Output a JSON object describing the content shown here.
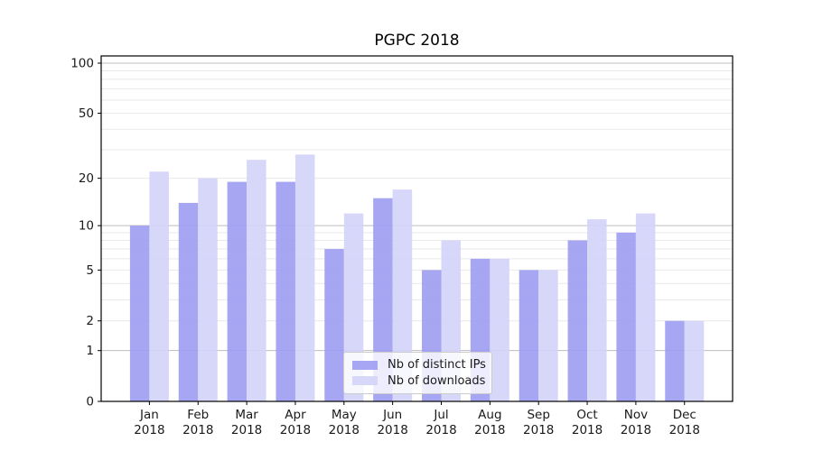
{
  "chart_data": {
    "type": "bar",
    "title": "PGPC 2018",
    "categories": [
      "Jan 2018",
      "Feb 2018",
      "Mar 2018",
      "Apr 2018",
      "May 2018",
      "Jun 2018",
      "Jul 2018",
      "Aug 2018",
      "Sep 2018",
      "Oct 2018",
      "Nov 2018",
      "Dec 2018"
    ],
    "series": [
      {
        "name": "Nb of distinct IPs",
        "color": "#9c9cf2",
        "opacity": 0.9,
        "values": [
          10,
          14,
          19,
          19,
          7,
          15,
          5,
          6,
          5,
          8,
          9,
          2
        ]
      },
      {
        "name": "Nb of downloads",
        "color": "#d3d3f9",
        "opacity": 0.9,
        "values": [
          22,
          20,
          26,
          28,
          12,
          17,
          8,
          6,
          5,
          11,
          12,
          2
        ]
      }
    ],
    "yscale": "log1p",
    "ylim": [
      0,
      110
    ],
    "ytick_values": [
      100,
      50,
      20,
      10,
      5,
      2,
      1,
      0
    ],
    "ytick_labels": [
      "100",
      "50",
      "20",
      "10",
      "5",
      "2",
      "1",
      "0"
    ],
    "major_grid_values": [
      1,
      10,
      100
    ],
    "minor_grid_values": [
      2,
      3,
      4,
      5,
      6,
      7,
      8,
      9,
      20,
      30,
      40,
      50,
      60,
      70,
      80,
      90
    ],
    "grid": true,
    "legend_position": "inside-bottom-center"
  },
  "colors": {
    "axis": "#000000",
    "tick_label": "#1a1a1a",
    "grid_major": "#bdbdbd",
    "grid_minor": "#e9e9e9",
    "legend_border": "#cccccc",
    "background": "#ffffff"
  }
}
